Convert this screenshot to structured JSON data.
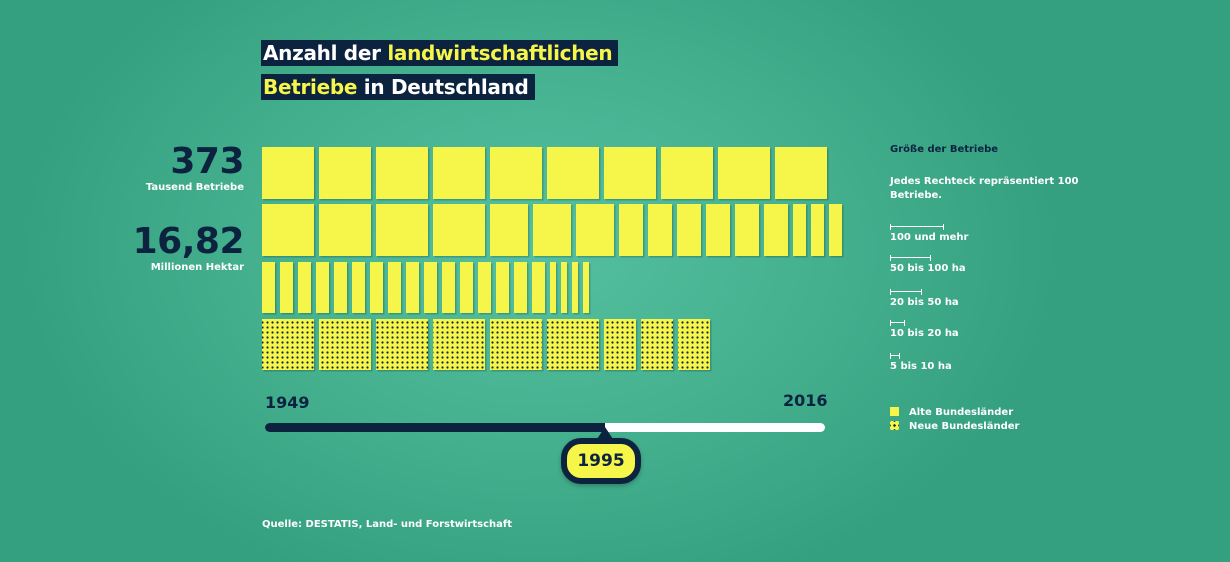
{
  "title": {
    "part1": "Anzahl der ",
    "highlight1": "landwirtschaftlichen",
    "highlight2": "Betriebe",
    "part2": " in Deutschland"
  },
  "stats": {
    "farms_value": "373",
    "farms_label": "Tausend Betriebe",
    "area_value": "16,82",
    "area_label": "Millionen Hektar"
  },
  "timeline": {
    "start_year": "1949",
    "end_year": "2016",
    "selected_year": "1995",
    "progress": 0.6
  },
  "legend": {
    "heading": "Größe der Betriebe",
    "description": "Jedes Rechteck repräsentiert 100 Betriebe.",
    "sizes": [
      {
        "label": "100 und mehr"
      },
      {
        "label": "50 bis 100 ha"
      },
      {
        "label": "20 bis 50 ha"
      },
      {
        "label": "10 bis 20 ha"
      },
      {
        "label": "5 bis 10 ha"
      }
    ],
    "regions": [
      {
        "label": "Alte Bundesländer"
      },
      {
        "label": "Neue Bundesländer"
      }
    ]
  },
  "source": "Quelle: DESTATIS, Land- und Forstwirtschaft",
  "colors": {
    "fill": "#f6f54a",
    "dark": "#0c2340",
    "background": "#44b08e"
  },
  "chart_data": {
    "type": "bar",
    "description_unit": "rectangles",
    "series": [
      {
        "name": "Alte Bundesländer",
        "row": 1,
        "rect_count": 10
      },
      {
        "name": "Alte Bundesländer",
        "row": 2,
        "rect_count": 16
      },
      {
        "name": "Alte Bundesländer",
        "row": 3,
        "rect_count": 20
      },
      {
        "name": "Neue Bundesländer",
        "row": 4,
        "rect_count": 9
      }
    ]
  }
}
